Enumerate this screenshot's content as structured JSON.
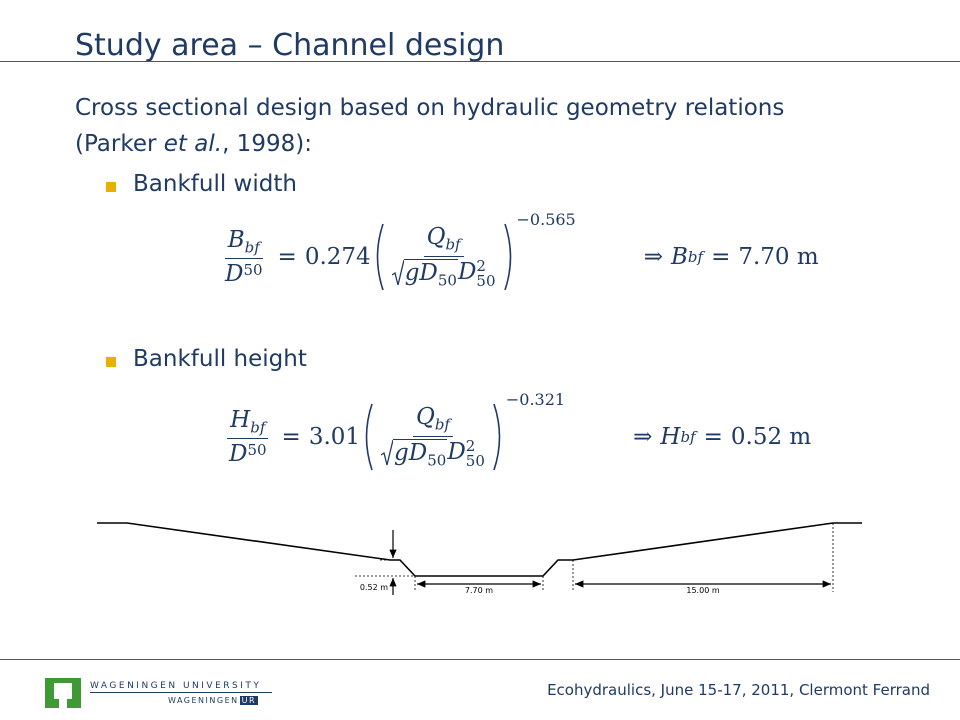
{
  "header": {
    "title": "Study area – Channel design"
  },
  "body": {
    "intro": "Cross sectional design based on hydraulic geometry relations",
    "citation_open": "(Parker ",
    "citation_italic": "et al.",
    "citation_close": ", 1998):"
  },
  "bullets": [
    {
      "label": "Bankfull width",
      "equation": {
        "lhs_var": "B",
        "lhs_sub": "bf",
        "denom_var": "D",
        "denom_sub": "50",
        "equals": "=",
        "coefficient": "0.274",
        "q_var": "Q",
        "q_sub": "bf",
        "g_var": "g",
        "d_var": "D",
        "d_sub": "50",
        "d2_var": "D",
        "d2_sub": "50",
        "d2_sup": "2",
        "exponent": "−0.565",
        "implies": "⇒",
        "result_var": "B",
        "result_sub": "bf",
        "result_value": "7.70 m"
      }
    },
    {
      "label": "Bankfull height",
      "equation": {
        "lhs_var": "H",
        "lhs_sub": "bf",
        "denom_var": "D",
        "denom_sub": "50",
        "equals": "=",
        "coefficient": "3.01",
        "q_var": "Q",
        "q_sub": "bf",
        "g_var": "g",
        "d_var": "D",
        "d_sub": "50",
        "d2_var": "D",
        "d2_sub": "50",
        "d2_sup": "2",
        "exponent": "−0.321",
        "implies": "⇒",
        "result_var": "H",
        "result_sub": "bf",
        "result_value": "0.52 m"
      }
    }
  ],
  "diagram": {
    "height_label": "0.52 m",
    "width_label": "7.70 m",
    "floodplain_label": "15.00 m"
  },
  "footer": {
    "logo_top": "WAGENINGEN UNIVERSITY",
    "logo_left": "WAGENINGEN",
    "logo_right": "UR",
    "conference": "Ecohydraulics, June 15-17, 2011, Clermont Ferrand"
  }
}
